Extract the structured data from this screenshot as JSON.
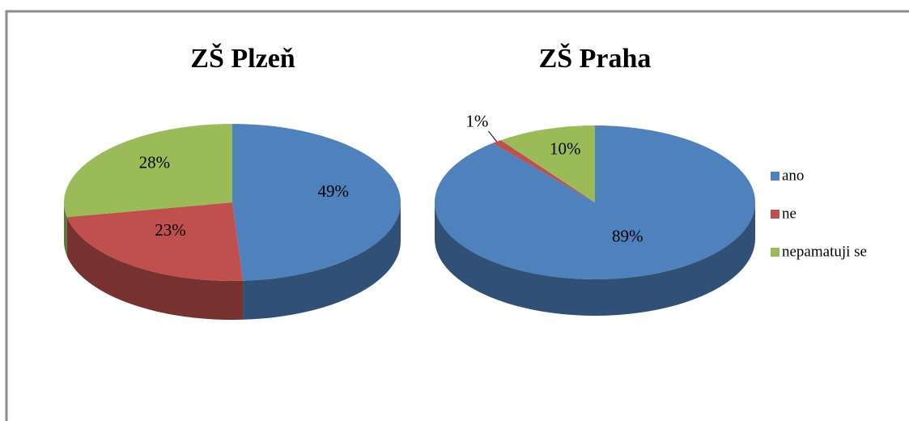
{
  "chart_data": [
    {
      "type": "pie",
      "title": "ZŠ Plzeň",
      "values": [
        49,
        23,
        28
      ],
      "value_labels": [
        "49%",
        "23%",
        "28%"
      ],
      "colors": [
        "#4f81bd",
        "#c0504d",
        "#9bbb59"
      ]
    },
    {
      "type": "pie",
      "title": "ZŠ Praha",
      "categories": [
        "ano",
        "ne",
        "nepamatuji se"
      ],
      "values": [
        89,
        1,
        10
      ],
      "value_labels": [
        "89%",
        "1%",
        "10%"
      ],
      "colors": [
        "#4f81bd",
        "#c0504d",
        "#9bbb59"
      ],
      "legend": "right"
    }
  ]
}
